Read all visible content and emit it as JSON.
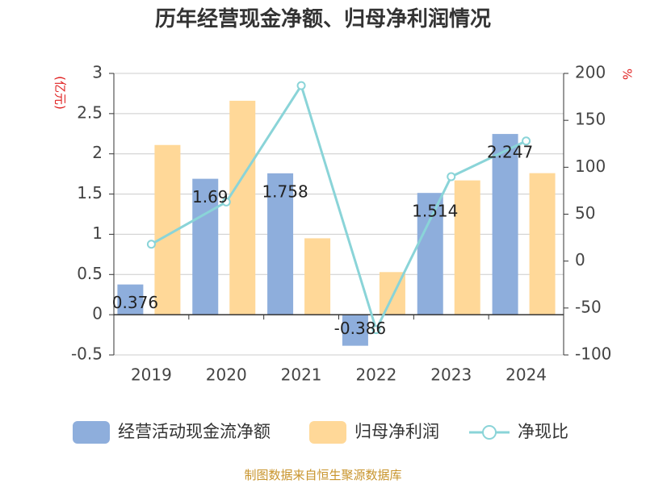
{
  "chart_data": {
    "type": "bar",
    "title": "历年经营现金净额、归母净利润情况",
    "categories": [
      "2019",
      "2020",
      "2021",
      "2022",
      "2023",
      "2024"
    ],
    "series": [
      {
        "name": "经营活动现金流净额",
        "type": "bar",
        "axis": "left",
        "color": "#8eaedc",
        "values": [
          0.376,
          1.69,
          1.758,
          -0.386,
          1.514,
          2.247
        ],
        "labels": [
          "0.376",
          "1.69",
          "1.758",
          "-0.386",
          "1.514",
          "2.247"
        ]
      },
      {
        "name": "归母净利润",
        "type": "bar",
        "axis": "left",
        "color": "#ffd898",
        "values": [
          2.11,
          2.66,
          0.95,
          0.53,
          1.67,
          1.76
        ]
      },
      {
        "name": "净现比",
        "type": "line",
        "axis": "right",
        "color": "#8ad4d8",
        "values": [
          18,
          63,
          187,
          -73,
          90,
          128
        ]
      }
    ],
    "y_left": {
      "unit": "(亿元)",
      "min": -0.5,
      "max": 3,
      "ticks": [
        "3",
        "2.5",
        "2",
        "1.5",
        "1",
        "0.5",
        "0",
        "-0.5"
      ]
    },
    "y_right": {
      "unit": "%",
      "min": -100,
      "max": 200,
      "ticks": [
        "200",
        "150",
        "100",
        "50",
        "0",
        "-50",
        "-100"
      ]
    },
    "legend_position": "bottom",
    "grid": true
  },
  "source": "制图数据来自恒生聚源数据库"
}
